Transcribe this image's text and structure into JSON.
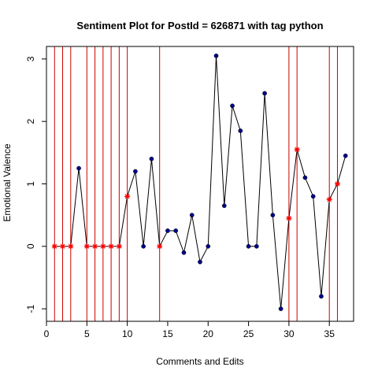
{
  "chart_data": {
    "type": "line",
    "title": "Sentiment Plot for PostId =  626871  with tag  python",
    "xlabel": "Comments and Edits",
    "ylabel": "Emotional Valence",
    "xlim": [
      0,
      38
    ],
    "ylim": [
      -1.2,
      3.2
    ],
    "x_ticks": [
      0,
      5,
      10,
      15,
      20,
      25,
      30,
      35
    ],
    "y_ticks": [
      -1,
      0,
      1,
      2,
      3
    ],
    "x": [
      1,
      2,
      3,
      4,
      5,
      6,
      7,
      8,
      9,
      10,
      11,
      12,
      13,
      14,
      15,
      16,
      17,
      18,
      19,
      20,
      21,
      22,
      23,
      24,
      25,
      26,
      27,
      28,
      29,
      30,
      31,
      32,
      33,
      34,
      35,
      36,
      37
    ],
    "y": [
      0,
      0,
      0,
      1.25,
      0,
      0,
      0,
      0,
      0,
      0.8,
      1.2,
      0,
      1.4,
      0,
      0.25,
      0.25,
      -0.1,
      0.5,
      -0.25,
      0,
      3.05,
      0.65,
      2.25,
      1.85,
      0,
      0,
      2.45,
      0.5,
      -1.0,
      0.45,
      1.55,
      1.1,
      0.8,
      -0.8,
      0.75,
      1.0,
      1.45
    ],
    "edit_points": [
      1,
      2,
      3,
      5,
      6,
      7,
      8,
      9,
      10,
      14,
      30,
      31,
      35,
      36
    ],
    "vertical_lines": [
      1,
      2,
      3,
      5,
      6,
      7,
      8,
      9,
      10,
      14,
      30,
      31,
      35,
      36
    ],
    "colors": {
      "line": "#000000",
      "comment_point": "#00008b",
      "edit_point": "#ff0000",
      "vertical_line": "#cc0000"
    }
  }
}
